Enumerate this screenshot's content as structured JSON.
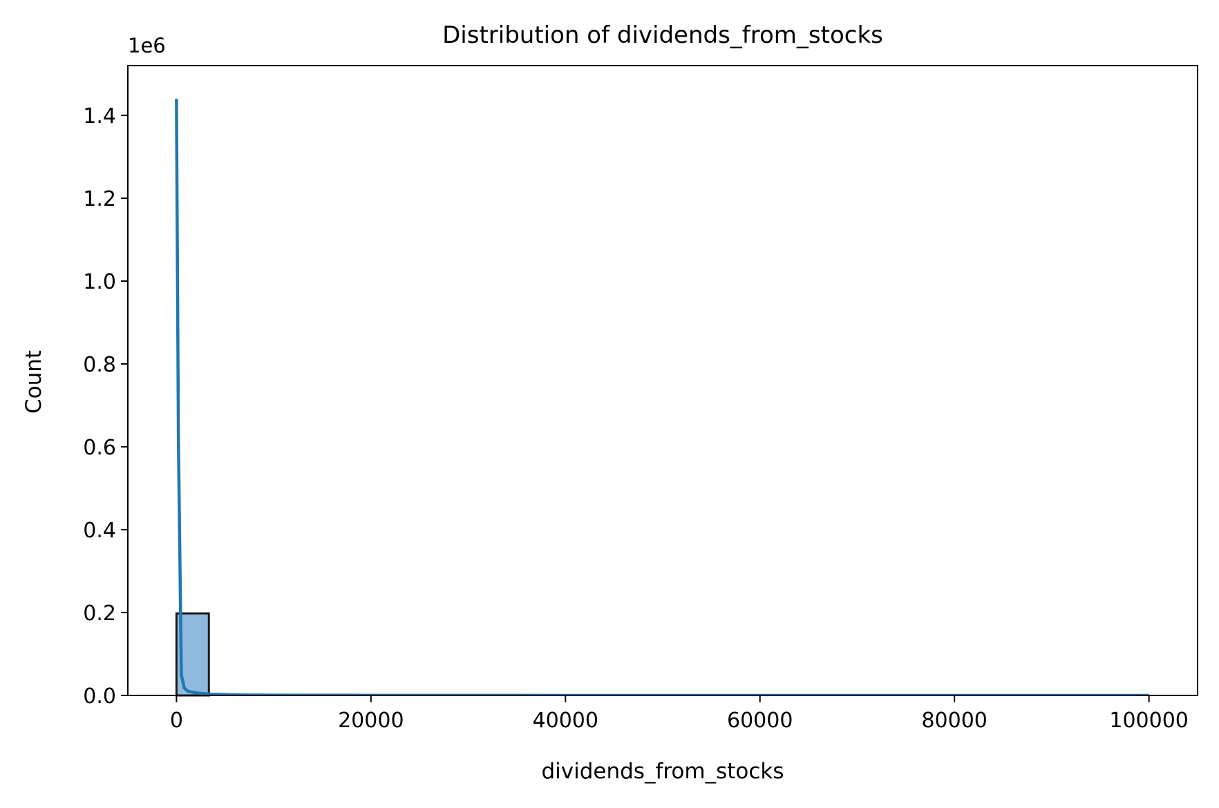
{
  "chart_data": {
    "type": "bar",
    "title": "Distribution of dividends_from_stocks",
    "xlabel": "dividends_from_stocks",
    "ylabel": "Count",
    "y_offset_label": "1e6",
    "xlim": [
      -5000,
      105000
    ],
    "ylim": [
      0,
      1.52
    ],
    "xticks": [
      0,
      20000,
      40000,
      60000,
      80000,
      100000
    ],
    "xtick_labels": [
      "0",
      "20000",
      "40000",
      "60000",
      "80000",
      "100000"
    ],
    "yticks": [
      0.0,
      0.2,
      0.4,
      0.6,
      0.8,
      1.0,
      1.2,
      1.4
    ],
    "ytick_labels": [
      "0.0",
      "0.2",
      "0.4",
      "0.6",
      "0.8",
      "1.0",
      "1.2",
      "1.4"
    ],
    "grid": false,
    "legend": "none",
    "histogram": {
      "bin_width": 3333.33,
      "bins": [
        {
          "x0": 0,
          "x1": 3333.33,
          "count": 0.198
        }
      ]
    },
    "kde_line": {
      "x": [
        0,
        200,
        500,
        800,
        1200,
        1800,
        2500,
        3500,
        5000,
        6500,
        8000,
        10000,
        15000,
        20000,
        30000,
        40000,
        60000,
        80000,
        100000
      ],
      "y": [
        1.44,
        0.62,
        0.05,
        0.018,
        0.01,
        0.007,
        0.005,
        0.003,
        0.002,
        0.0012,
        0.0009,
        0.0007,
        0.0004,
        0.0003,
        0.0002,
        0.0001,
        0.0001,
        0.0,
        0.0
      ]
    },
    "colors": {
      "bar_fill": "#8fb9dc",
      "bar_edge": "#1a1a1a",
      "line": "#2077b4",
      "axes": "#000000"
    }
  }
}
